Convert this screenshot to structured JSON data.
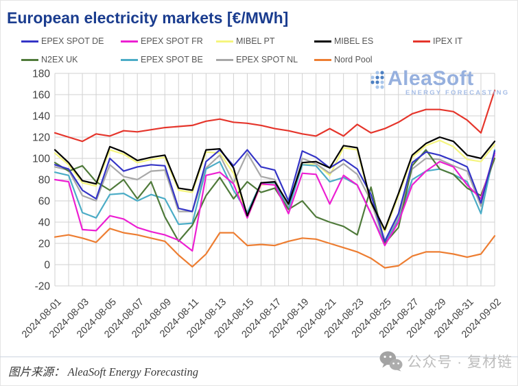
{
  "title": "European electricity markets [€/MWh]",
  "watermark": {
    "name": "AleaSoft",
    "subtitle": "ENERGY FORECASTING"
  },
  "footer": {
    "source_label": "图片来源：",
    "source_text": "AleaSoft Energy Forecasting",
    "wechat_text": "公众号 · 复材链"
  },
  "colors": {
    "title": "#1b3d8f",
    "grid": "#d1d1d1",
    "axis_text": "#404040",
    "legend_text": "#565656",
    "logo_text": "#96b0de",
    "logo_dot_dark": "#4d80c2",
    "logo_dot_light": "#a9c6ea"
  },
  "chart_data": {
    "type": "line",
    "title": "European electricity markets [€/MWh]",
    "xlabel": "",
    "ylabel": "",
    "ylim": [
      -20,
      180
    ],
    "y_ticks": [
      180,
      160,
      140,
      120,
      100,
      80,
      60,
      40,
      20,
      0,
      -20
    ],
    "grid": true,
    "legend_position": "top",
    "x": [
      "2024-08-01",
      "2024-08-02",
      "2024-08-03",
      "2024-08-04",
      "2024-08-05",
      "2024-08-06",
      "2024-08-07",
      "2024-08-08",
      "2024-08-09",
      "2024-08-10",
      "2024-08-11",
      "2024-08-12",
      "2024-08-13",
      "2024-08-14",
      "2024-08-15",
      "2024-08-16",
      "2024-08-17",
      "2024-08-18",
      "2024-08-19",
      "2024-08-20",
      "2024-08-21",
      "2024-08-22",
      "2024-08-23",
      "2024-08-24",
      "2024-08-25",
      "2024-08-26",
      "2024-08-27",
      "2024-08-28",
      "2024-08-29",
      "2024-08-30",
      "2024-08-31",
      "2024-09-01",
      "2024-09-02"
    ],
    "x_tick_labels": [
      "2024-08-01",
      "2024-08-03",
      "2024-08-05",
      "2024-08-07",
      "2024-08-09",
      "2024-08-11",
      "2024-08-13",
      "2024-08-15",
      "2024-08-17",
      "2024-08-19",
      "2024-08-21",
      "2024-08-23",
      "2024-08-25",
      "2024-08-27",
      "2024-08-29",
      "2024-08-31",
      "2024-09-02"
    ],
    "series": [
      {
        "name": "EPEX SPOT DE",
        "color": "#3434c6",
        "values": [
          94,
          90,
          70,
          62,
          100,
          88,
          92,
          94,
          93,
          53,
          50,
          97,
          108,
          93,
          108,
          92,
          89,
          60,
          107,
          101,
          91,
          99,
          90,
          66,
          22,
          48,
          96,
          106,
          103,
          98,
          92,
          58,
          107
        ]
      },
      {
        "name": "EPEX SPOT FR",
        "color": "#ec1fd2",
        "values": [
          80,
          78,
          33,
          32,
          46,
          43,
          35,
          31,
          28,
          23,
          13,
          84,
          87,
          76,
          44,
          76,
          75,
          48,
          86,
          85,
          57,
          84,
          75,
          48,
          18,
          40,
          75,
          88,
          97,
          92,
          75,
          62,
          105
        ]
      },
      {
        "name": "MIBEL PT",
        "color": "#f5f57e",
        "values": [
          105,
          94,
          77,
          74,
          108,
          104,
          96,
          99,
          101,
          70,
          68,
          106,
          105,
          86,
          44,
          75,
          76,
          55,
          94,
          95,
          84,
          110,
          108,
          57,
          31,
          65,
          101,
          112,
          117,
          111,
          99,
          97,
          113
        ]
      },
      {
        "name": "MIBEL ES",
        "color": "#000000",
        "values": [
          108,
          96,
          79,
          76,
          111,
          106,
          98,
          101,
          103,
          72,
          70,
          108,
          109,
          91,
          46,
          77,
          78,
          57,
          96,
          97,
          91,
          112,
          110,
          59,
          33,
          67,
          103,
          114,
          120,
          116,
          103,
          100,
          116
        ]
      },
      {
        "name": "IPEX IT",
        "color": "#e5352b",
        "values": [
          124,
          120,
          116,
          123,
          121,
          126,
          125,
          127,
          129,
          130,
          131,
          135,
          137,
          134,
          133,
          131,
          128,
          126,
          123,
          121,
          128,
          121,
          132,
          124,
          128,
          134,
          142,
          146,
          146,
          144,
          136,
          124,
          164
        ]
      },
      {
        "name": "N2EX UK",
        "color": "#4f7a3a",
        "values": [
          96,
          88,
          93,
          78,
          70,
          80,
          62,
          78,
          45,
          22,
          37,
          65,
          82,
          62,
          78,
          68,
          72,
          52,
          60,
          45,
          40,
          36,
          28,
          73,
          20,
          35,
          93,
          108,
          90,
          85,
          72,
          65,
          100
        ]
      },
      {
        "name": "EPEX SPOT BE",
        "color": "#4bacc6",
        "values": [
          87,
          84,
          49,
          44,
          66,
          67,
          60,
          66,
          62,
          38,
          39,
          90,
          97,
          70,
          49,
          77,
          77,
          52,
          94,
          93,
          78,
          82,
          75,
          48,
          20,
          42,
          80,
          88,
          90,
          85,
          78,
          48,
          108
        ]
      },
      {
        "name": "EPEX SPOT NL",
        "color": "#a8a8a8",
        "values": [
          92,
          89,
          65,
          60,
          94,
          83,
          80,
          88,
          89,
          50,
          50,
          91,
          103,
          77,
          105,
          83,
          80,
          54,
          100,
          95,
          86,
          95,
          85,
          60,
          20,
          45,
          90,
          100,
          99,
          93,
          88,
          55,
          103
        ]
      },
      {
        "name": "Nord Pool",
        "color": "#ed7d31",
        "values": [
          26,
          28,
          25,
          21,
          34,
          30,
          28,
          25,
          22,
          9,
          -2,
          10,
          30,
          30,
          18,
          19,
          18,
          22,
          25,
          24,
          20,
          16,
          12,
          6,
          -3,
          -1,
          8,
          12,
          12,
          10,
          7,
          10,
          27
        ]
      }
    ],
    "draw_order": [
      "MIBEL PT",
      "EPEX SPOT NL",
      "EPEX SPOT BE",
      "N2EX UK",
      "EPEX SPOT FR",
      "EPEX SPOT DE",
      "MIBEL ES",
      "Nord Pool",
      "IPEX IT"
    ]
  }
}
